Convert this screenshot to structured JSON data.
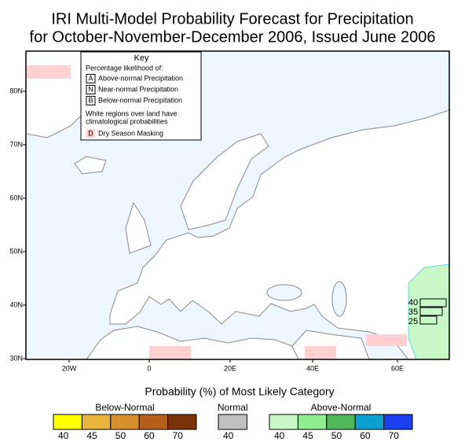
{
  "title": [
    "IRI Multi-Model Probability Forecast for Precipitation",
    "for October-November-December 2006, Issued June 2006"
  ],
  "key": {
    "heading": "Key",
    "subtitle": "Percentage likelihood of:",
    "items": [
      {
        "letter": "A",
        "text": "Above-normal Precipitation"
      },
      {
        "letter": "N",
        "text": "Near-normal Precipitation"
      },
      {
        "letter": "B",
        "text": "Below-normal Precipitation"
      }
    ],
    "note": [
      "White regions over land have",
      "climatological probabilities"
    ],
    "dry": {
      "letter": "D",
      "text": "Dry Season Masking"
    }
  },
  "map": {
    "lat_labels": [
      "80N",
      "70N",
      "60N",
      "50N",
      "40N",
      "30N"
    ],
    "lon_labels": [
      "20W",
      "0",
      "20E",
      "40E",
      "60E"
    ],
    "inset_labels": [
      "40",
      "35",
      "25"
    ]
  },
  "legend": {
    "title": "Probability (%) of Most Likely Category",
    "groups": [
      {
        "name": "Below-Normal",
        "swatches": [
          {
            "label": "40",
            "color": "#ffff00"
          },
          {
            "label": "45",
            "color": "#e8b43c"
          },
          {
            "label": "50",
            "color": "#d8902e"
          },
          {
            "label": "60",
            "color": "#b4601c"
          },
          {
            "label": "70",
            "color": "#7a3208"
          }
        ]
      },
      {
        "name": "Normal",
        "swatches": [
          {
            "label": "40",
            "color": "#c0c0c0"
          }
        ]
      },
      {
        "name": "Above-Normal",
        "swatches": [
          {
            "label": "40",
            "color": "#c8f8c8"
          },
          {
            "label": "45",
            "color": "#90ee90"
          },
          {
            "label": "50",
            "color": "#50b858"
          },
          {
            "label": "60",
            "color": "#0aa0d0"
          },
          {
            "label": "70",
            "color": "#1a40f0"
          }
        ]
      }
    ]
  }
}
